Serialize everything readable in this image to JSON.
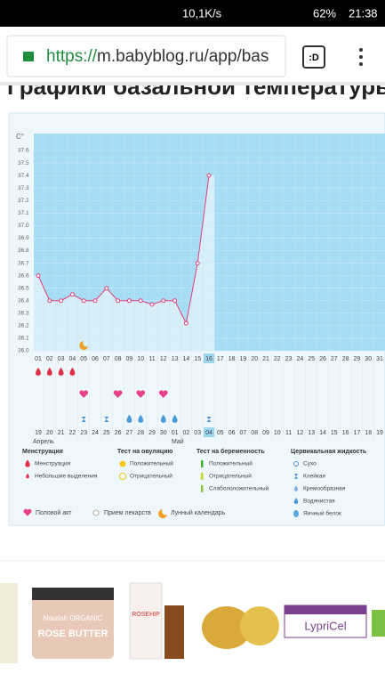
{
  "status_bar": {
    "speed": "10,1K/s",
    "battery": "62%",
    "time": "21:38"
  },
  "browser": {
    "url_scheme": "https://",
    "url_rest": "m.babyblog.ru/app/bas",
    "tab_label": ":D"
  },
  "page_title": "Графики базальной температуры",
  "chart_data": {
    "type": "line",
    "y_label": "C°",
    "categories": [
      "01",
      "02",
      "03",
      "04",
      "05",
      "06",
      "07",
      "08",
      "09",
      "10",
      "11",
      "12",
      "13",
      "14",
      "15",
      "16",
      "17",
      "18",
      "19",
      "20",
      "21",
      "22",
      "23",
      "24",
      "25",
      "26",
      "27",
      "28",
      "29",
      "30",
      "31"
    ],
    "dates": [
      "19",
      "20",
      "21",
      "22",
      "23",
      "24",
      "25",
      "26",
      "27",
      "28",
      "29",
      "30",
      "01",
      "02",
      "03",
      "04",
      "05",
      "06",
      "07",
      "08",
      "09",
      "10",
      "11",
      "12",
      "13",
      "14",
      "15",
      "16",
      "17",
      "18",
      "19"
    ],
    "months": [
      "Апрель",
      "Май"
    ],
    "series": [
      {
        "name": "Температура",
        "color": "#e0407a",
        "values": [
          36.6,
          36.4,
          36.4,
          36.45,
          36.4,
          36.4,
          36.5,
          36.4,
          36.4,
          36.4,
          36.37,
          36.4,
          36.4,
          36.22,
          36.7,
          37.4,
          null,
          null,
          null,
          null,
          null,
          null,
          null,
          null,
          null,
          null,
          null,
          null,
          null,
          null,
          null
        ]
      }
    ],
    "ylim": [
      36.0,
      37.6
    ],
    "yticks": [
      {
        "value": 36.0,
        "label": "36.0"
      },
      36.1,
      36.2,
      36.3,
      36.4,
      36.5,
      36.6,
      36.7,
      36.8,
      36.9,
      {
        "value": 37.0,
        "label": "37.0"
      },
      37.1,
      37.2,
      37.3,
      37.4,
      37.5,
      37.6
    ],
    "grid": true
  },
  "legend": {
    "groups": [
      {
        "title": "Менструация",
        "items": [
          "Менструация",
          "Небольшие выделения"
        ]
      },
      {
        "title": "Тест на овуляцию",
        "items": [
          "Положительный",
          "Отрицательный"
        ]
      },
      {
        "title": "Тест на беременность",
        "items": [
          "Положительный",
          "Отрицательный",
          "Слабоположительный"
        ]
      },
      {
        "title": "Цервикальная жидкость",
        "items": [
          "Сухо",
          "Клейкая",
          "Кремообразная",
          "Водянистая",
          "Яичный белок"
        ]
      }
    ],
    "extra": [
      "Половой акт",
      "Прием лекарств",
      "Лунный календарь"
    ]
  },
  "ads": {
    "product1_brand": "Nourish ORGANIC",
    "product1_name": "ROSE BUTTER",
    "product2_name": "ROSEHIP",
    "product3_name": "LypriCel"
  }
}
